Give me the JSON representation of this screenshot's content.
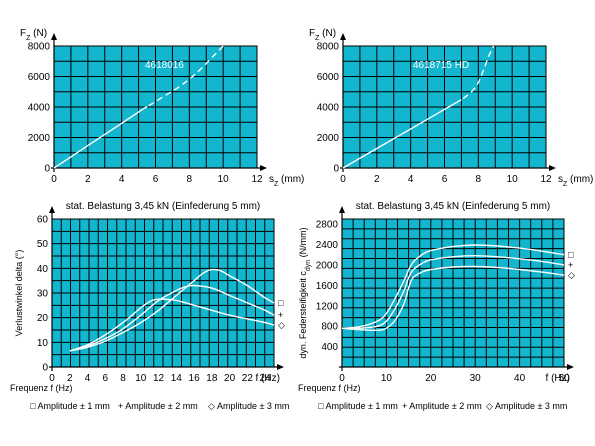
{
  "chart_data": [
    {
      "type": "line",
      "ylabel": "F",
      "ylabel_sub": "Z",
      "ylabel_unit": "(N)",
      "xlabel": "s",
      "xlabel_sub": "Z",
      "xlabel_unit": "(mm)",
      "annotation": "4618016",
      "xlim": [
        0,
        12
      ],
      "ylim": [
        0,
        8000
      ],
      "x_ticks": [
        0,
        2,
        4,
        6,
        8,
        10,
        12
      ],
      "y_ticks": [
        0,
        2000,
        4000,
        6000,
        8000
      ],
      "grid": true,
      "series": [
        {
          "style": "solid",
          "x": [
            0,
            1,
            2,
            3,
            4,
            5,
            5.5
          ],
          "y": [
            0,
            730,
            1470,
            2200,
            2930,
            3670,
            4030
          ]
        },
        {
          "style": "dashed",
          "x": [
            5.6,
            6.5,
            7.5,
            8.5,
            9.3,
            10
          ],
          "y": [
            4080,
            4700,
            5400,
            6300,
            7200,
            8000
          ]
        }
      ]
    },
    {
      "type": "line",
      "ylabel": "F",
      "ylabel_sub": "Z",
      "ylabel_unit": "(N)",
      "xlabel": "s",
      "xlabel_sub": "Z",
      "xlabel_unit": "(mm)",
      "annotation": "4618715 HD",
      "xlim": [
        0,
        12
      ],
      "ylim": [
        0,
        8000
      ],
      "x_ticks": [
        0,
        2,
        4,
        6,
        8,
        10,
        12
      ],
      "y_ticks": [
        0,
        2000,
        4000,
        6000,
        8000
      ],
      "grid": true,
      "series": [
        {
          "style": "solid",
          "x": [
            0,
            1,
            2,
            3,
            4,
            5,
            6,
            7
          ],
          "y": [
            0,
            640,
            1280,
            1920,
            2560,
            3200,
            3840,
            4480
          ]
        },
        {
          "style": "dashed",
          "x": [
            7.1,
            7.6,
            8.0,
            8.3,
            8.6,
            8.9
          ],
          "y": [
            4560,
            5000,
            5600,
            6400,
            7300,
            8000
          ]
        }
      ]
    },
    {
      "type": "line",
      "title": "stat. Belastung 3,45 kN (Einfederung 5 mm)",
      "ylabel": "Verlustwinkel delta (°)",
      "xlabel": "f (Hz)",
      "xlabel_left": "Frequenz f (Hz)",
      "xlim": [
        0,
        25
      ],
      "ylim": [
        0,
        60
      ],
      "x_ticks": [
        0,
        2,
        4,
        6,
        8,
        10,
        12,
        14,
        16,
        18,
        20,
        22,
        24
      ],
      "y_ticks": [
        0,
        10,
        20,
        30,
        40,
        50,
        60
      ],
      "grid": true,
      "markers": [
        "□",
        "+",
        "◇"
      ],
      "legend": [
        "Amplitude   ± 1 mm",
        "Amplitude   ± 2 mm",
        "Amplitude   ± 3 mm"
      ],
      "series": [
        {
          "name": "Amplitude   ± 1 mm",
          "x": [
            2,
            4,
            6,
            8,
            10,
            12,
            14,
            16,
            17,
            18,
            19,
            20,
            22,
            24,
            25
          ],
          "y": [
            6.5,
            8,
            10.5,
            14,
            18,
            23,
            29,
            35,
            38,
            39.5,
            39,
            37,
            33,
            28,
            26
          ]
        },
        {
          "name": "Amplitude   ± 2 mm",
          "x": [
            2,
            4,
            6,
            8,
            10,
            12,
            14,
            15,
            16,
            18,
            20,
            22,
            24,
            25
          ],
          "y": [
            6.5,
            8.5,
            11.5,
            15.5,
            21,
            27,
            31,
            32.5,
            33,
            32,
            29,
            26,
            23,
            21
          ]
        },
        {
          "name": "Amplitude   ± 3 mm",
          "x": [
            2,
            4,
            6,
            8,
            10,
            11,
            12,
            14,
            16,
            18,
            20,
            22,
            24,
            25
          ],
          "y": [
            6.5,
            9,
            13,
            18,
            24,
            26.5,
            27.5,
            27,
            25,
            23,
            21,
            19.5,
            18,
            17
          ]
        }
      ]
    },
    {
      "type": "line",
      "title": "stat. Belastung 3,45 kN (Einfederung 5 mm)",
      "ylabel": "dyn. Federsteifigkeit c",
      "ylabel_sub": "dyn",
      "ylabel_unit": "(N/mm)",
      "xlabel": "f (Hz)",
      "xlabel_left": "Frequenz f (Hz)",
      "xlim": [
        0,
        50
      ],
      "ylim": [
        0,
        2900
      ],
      "x_ticks": [
        0,
        10,
        20,
        30,
        40,
        50
      ],
      "y_ticks": [
        0,
        400,
        800,
        1200,
        1600,
        2000,
        2400,
        2800
      ],
      "y_tick_labels_show_zero": false,
      "grid": true,
      "markers": [
        "□",
        "+",
        "◇"
      ],
      "legend": [
        "Amplitude   ± 1 mm",
        "Amplitude   ± 2 mm",
        "Amplitude   ± 3 mm"
      ],
      "series": [
        {
          "name": "Amplitude   ± 1 mm",
          "x": [
            0,
            4,
            8,
            10,
            12,
            14,
            15,
            16,
            18,
            20,
            25,
            30,
            35,
            40,
            45,
            50
          ],
          "y": [
            760,
            790,
            900,
            1050,
            1350,
            1700,
            1900,
            2050,
            2200,
            2280,
            2360,
            2390,
            2370,
            2330,
            2270,
            2200
          ]
        },
        {
          "name": "Amplitude   ± 2 mm",
          "x": [
            0,
            4,
            8,
            10,
            12,
            14,
            15,
            16,
            18,
            20,
            25,
            30,
            35,
            40,
            45,
            50
          ],
          "y": [
            760,
            760,
            800,
            900,
            1150,
            1500,
            1750,
            1900,
            2030,
            2100,
            2160,
            2180,
            2160,
            2120,
            2070,
            2000
          ]
        },
        {
          "name": "Amplitude   ± 3 mm",
          "x": [
            0,
            4,
            8,
            10,
            12,
            14,
            15,
            16,
            18,
            20,
            25,
            30,
            35,
            40,
            45,
            50
          ],
          "y": [
            760,
            730,
            720,
            760,
            920,
            1250,
            1550,
            1750,
            1860,
            1910,
            1960,
            1970,
            1950,
            1910,
            1860,
            1800
          ]
        }
      ]
    }
  ]
}
